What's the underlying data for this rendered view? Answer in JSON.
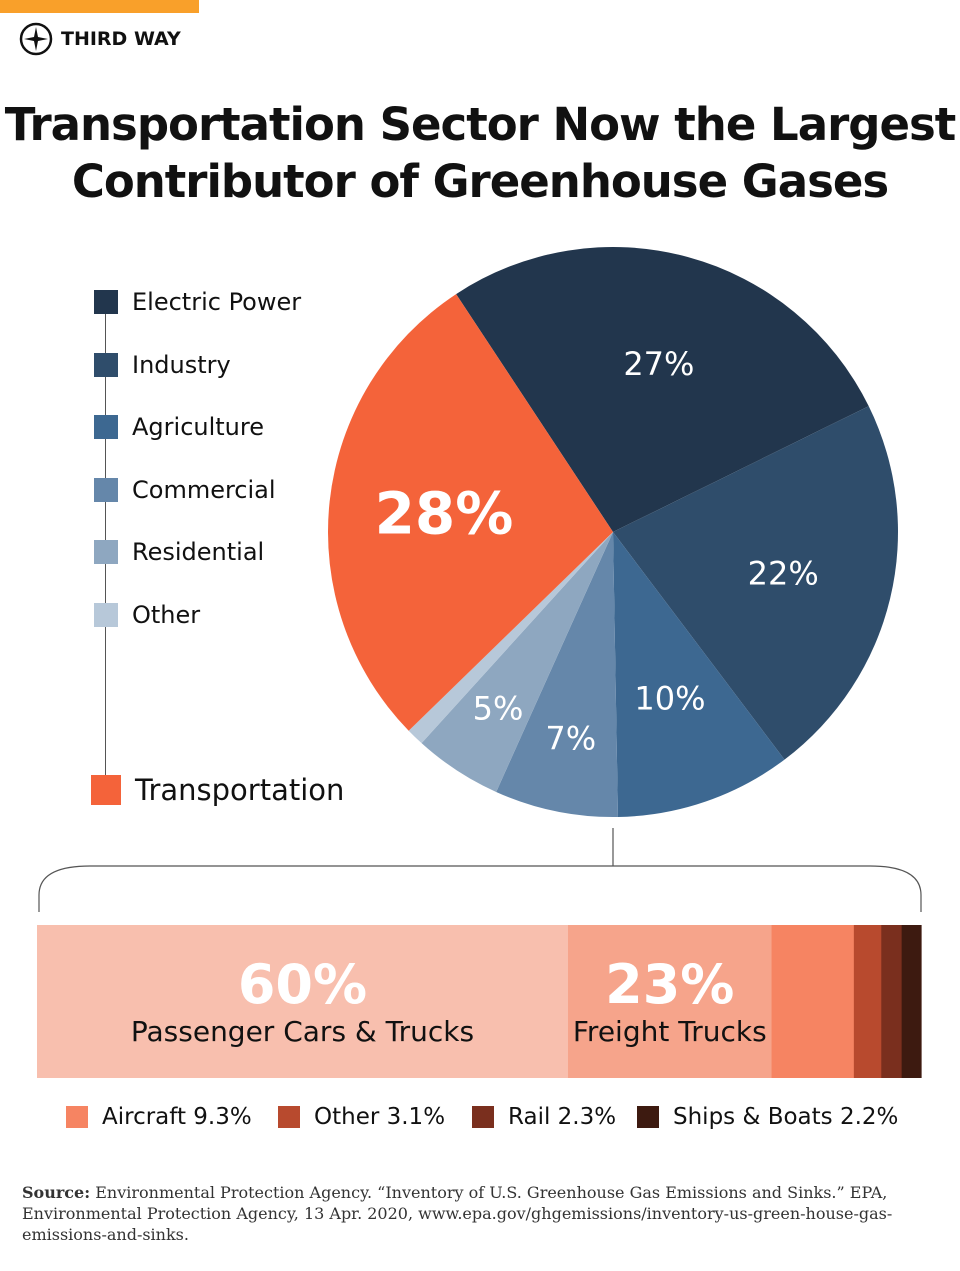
{
  "brand": {
    "name": "THIRD WAY",
    "accent": "#f9a02a"
  },
  "title_line1": "Transportation Sector Now the Largest",
  "title_line2": "Contributor of Greenhouse Gases",
  "chart_data": [
    {
      "type": "pie",
      "series": [
        {
          "name": "Electric Power",
          "value": 27,
          "label": "27%",
          "color": "#22364d"
        },
        {
          "name": "Industry",
          "value": 22,
          "label": "22%",
          "color": "#2f4d6b"
        },
        {
          "name": "Agriculture",
          "value": 10,
          "label": "10%",
          "color": "#3d6891"
        },
        {
          "name": "Commercial",
          "value": 7,
          "label": "7%",
          "color": "#6587aa"
        },
        {
          "name": "Residential",
          "value": 5,
          "label": "5%",
          "color": "#8ea7c0"
        },
        {
          "name": "Other",
          "value": 1,
          "label": "",
          "color": "#b7c8d9"
        },
        {
          "name": "Transportation",
          "value": 28,
          "label": "28%",
          "color": "#f4633a"
        }
      ],
      "legend_placement": "left"
    },
    {
      "type": "bar",
      "orientation": "horizontal-stacked",
      "series": [
        {
          "name": "Passenger Cars & Trucks",
          "value": 60,
          "label": "60%",
          "color": "#f8bfae"
        },
        {
          "name": "Freight Trucks",
          "value": 23,
          "label": "23%",
          "color": "#f6a48b"
        },
        {
          "name": "Aircraft",
          "value": 9.3,
          "legend": "Aircraft 9.3%",
          "color": "#f68462"
        },
        {
          "name": "Other",
          "value": 3.1,
          "legend": "Other 3.1%",
          "color": "#b84a2e"
        },
        {
          "name": "Rail",
          "value": 2.3,
          "legend": "Rail 2.3%",
          "color": "#7a2f1e"
        },
        {
          "name": "Ships & Boats",
          "value": 2.2,
          "legend": "Ships & Boats 2.2%",
          "color": "#3d1a10"
        }
      ]
    }
  ],
  "source": {
    "label": "Source:",
    "text": " Environmental Protection Agency. “Inventory of U.S. Greenhouse Gas Emissions and Sinks.” EPA, Environmental Protection Agency, 13 Apr. 2020, www.epa.gov/ghgemissions/inventory-us-green-house-gas-emissions-and-sinks."
  }
}
